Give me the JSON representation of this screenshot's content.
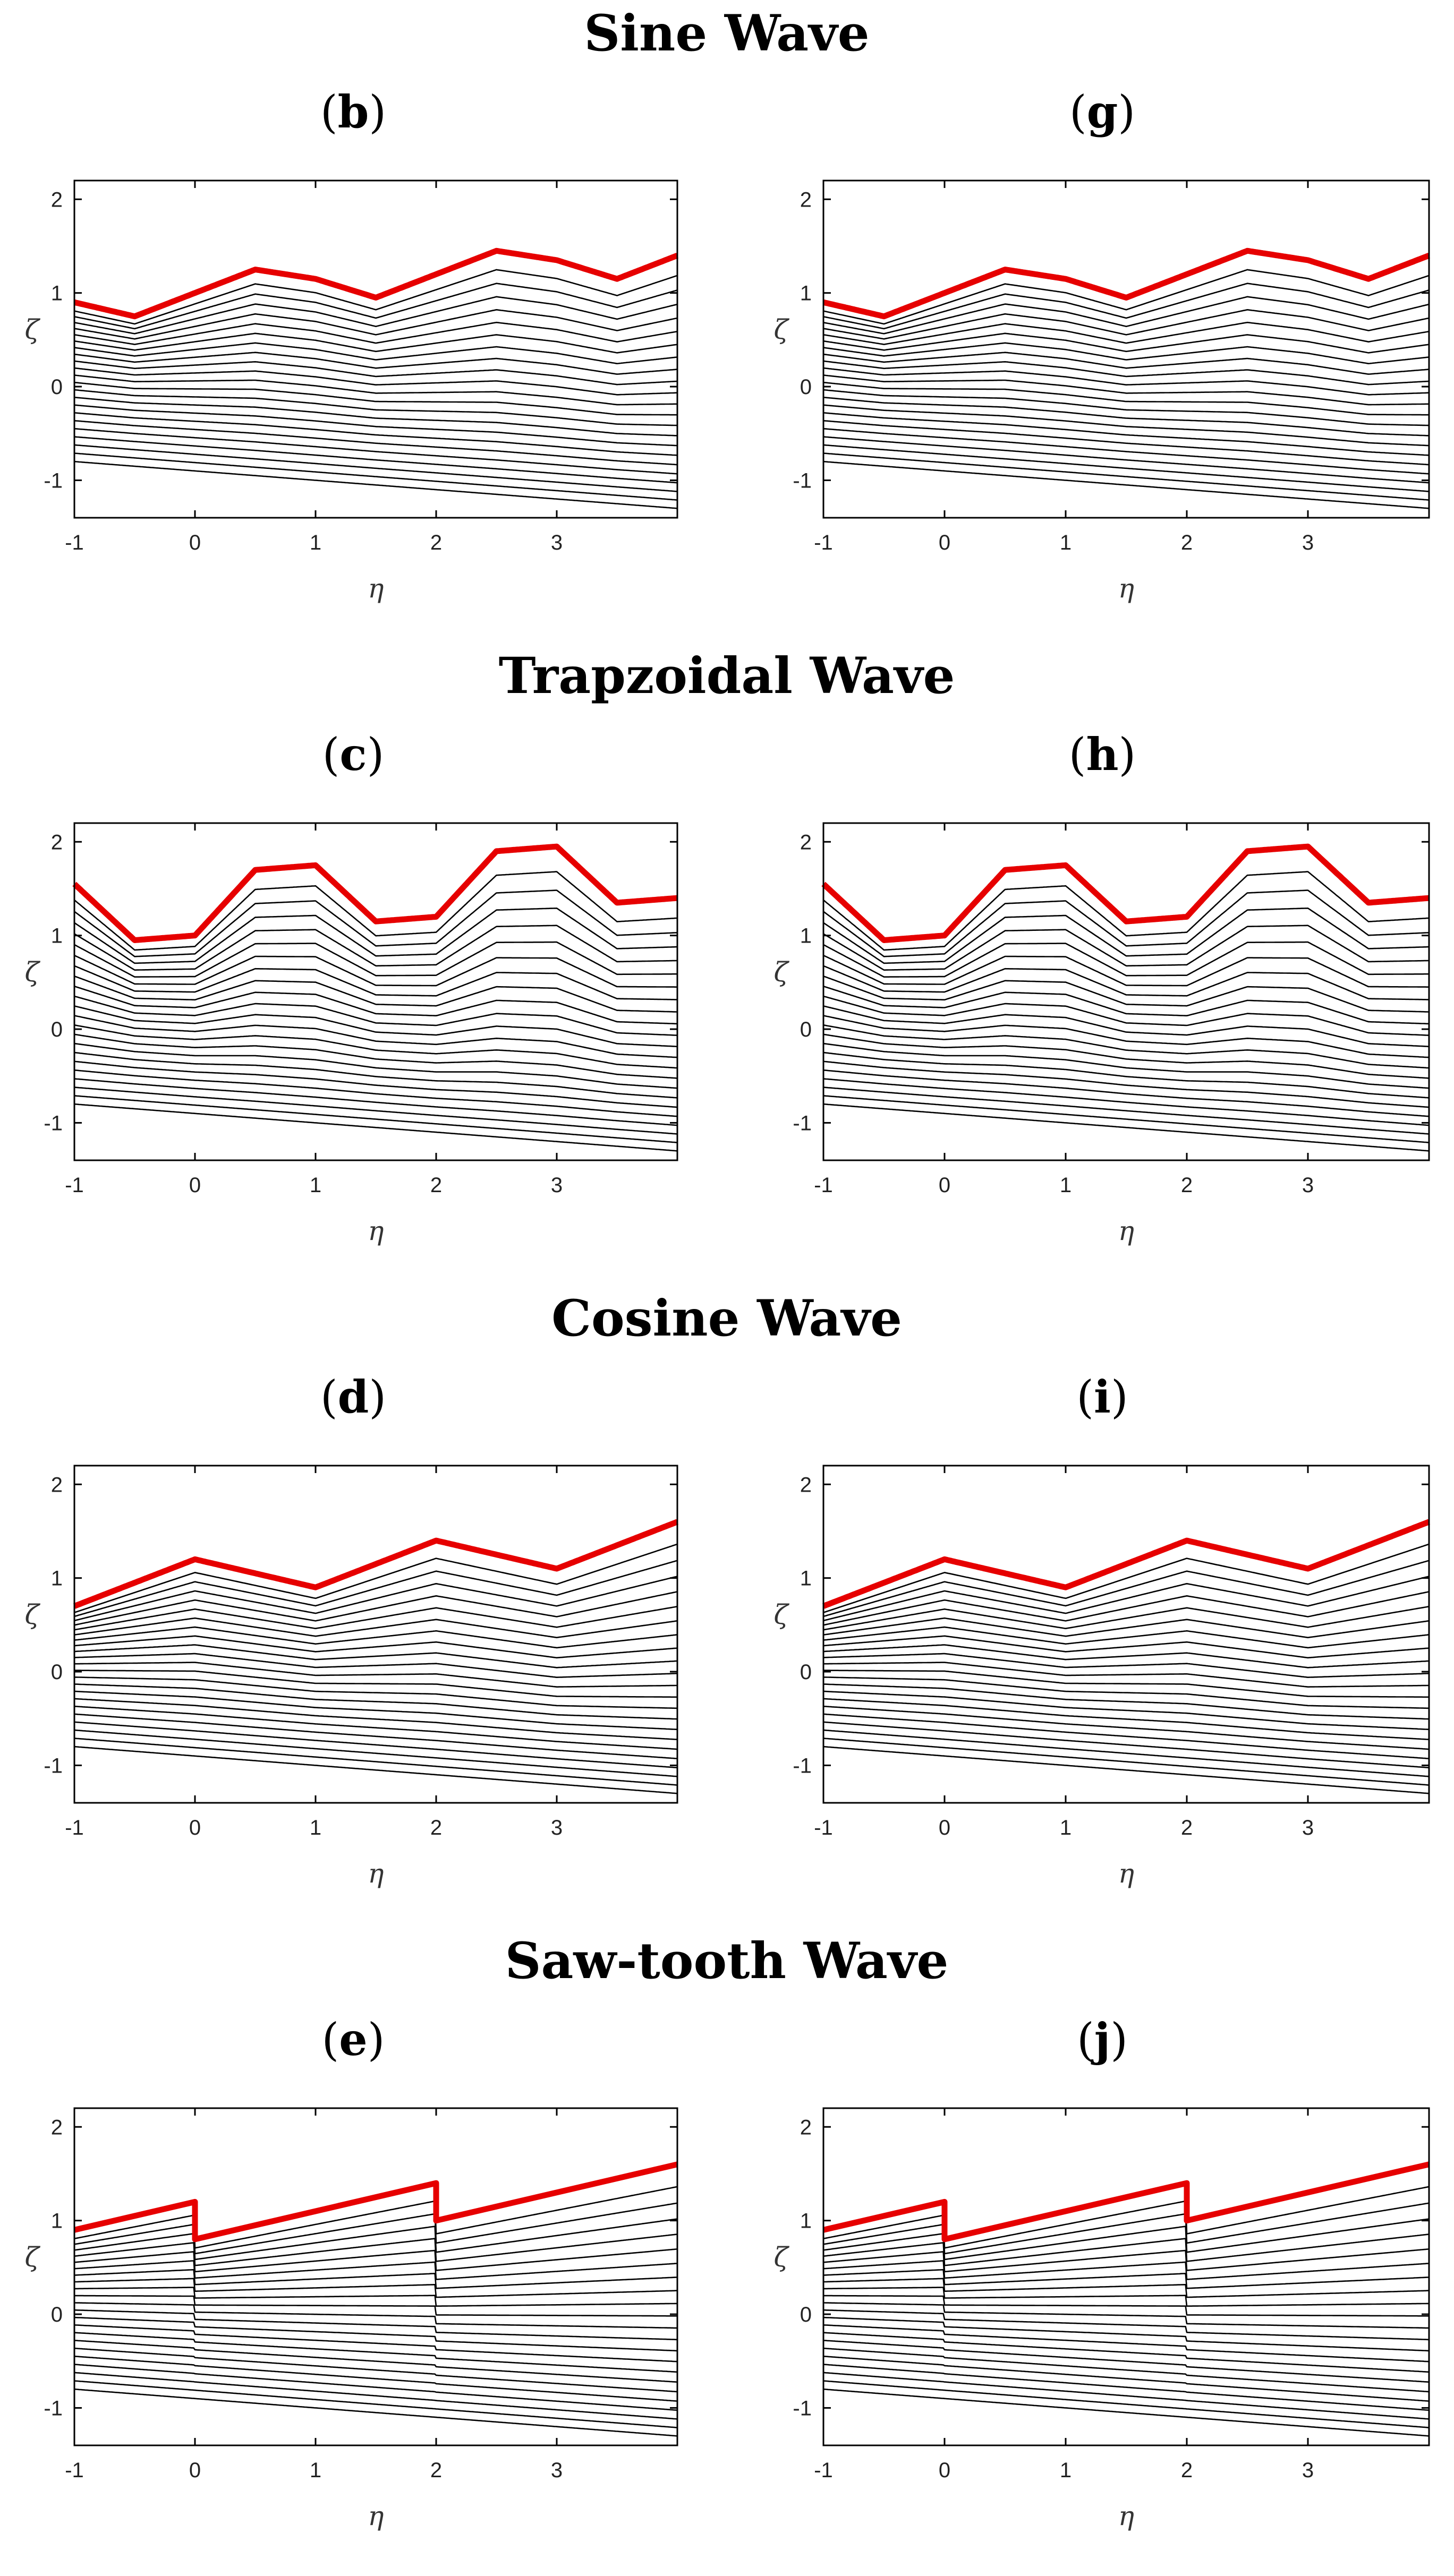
{
  "figure": {
    "rows": [
      {
        "title": "Sine Wave",
        "wave": "sine",
        "panels": [
          {
            "label": "b"
          },
          {
            "label": "g"
          }
        ]
      },
      {
        "title": "Trapzoidal Wave",
        "wave": "trapezoid",
        "panels": [
          {
            "label": "c"
          },
          {
            "label": "h"
          }
        ]
      },
      {
        "title": "Cosine Wave",
        "wave": "cosine",
        "panels": [
          {
            "label": "d"
          },
          {
            "label": "i"
          }
        ]
      },
      {
        "title": "Saw-tooth Wave",
        "wave": "sawtooth",
        "panels": [
          {
            "label": "e"
          },
          {
            "label": "j"
          }
        ]
      }
    ]
  },
  "chart_data": {
    "type": "line",
    "description_axes": {
      "xlabel": "η",
      "ylabel": "ζ",
      "xlim": [
        -1,
        4
      ],
      "ylim": [
        -1.4,
        2.2
      ],
      "xticks": [
        -1,
        0,
        1,
        2,
        3
      ],
      "yticks": [
        -1,
        0,
        1,
        2
      ]
    },
    "streamline_count": 22,
    "bottom_boundary": {
      "y_at_left": -0.8,
      "y_at_right": -1.3
    },
    "top_boundaries": {
      "sine": {
        "x": [
          -1,
          -0.5,
          0,
          0.5,
          1,
          1.5,
          2,
          2.5,
          3,
          3.5,
          4
        ],
        "y": [
          0.9,
          0.75,
          1.0,
          1.25,
          1.15,
          0.95,
          1.2,
          1.45,
          1.35,
          1.15,
          1.4
        ]
      },
      "trapezoid": {
        "x": [
          -1,
          -0.5,
          0,
          0.5,
          1,
          1.5,
          2,
          2.5,
          3,
          3.5,
          4
        ],
        "y": [
          1.55,
          0.95,
          1.0,
          1.7,
          1.75,
          1.15,
          1.2,
          1.9,
          1.95,
          1.35,
          1.4
        ]
      },
      "cosine": {
        "x": [
          -1,
          -0.5,
          0,
          0.5,
          1,
          1.5,
          2,
          2.5,
          3,
          3.5,
          4
        ],
        "y": [
          0.7,
          0.95,
          1.2,
          1.05,
          0.9,
          1.15,
          1.4,
          1.25,
          1.1,
          1.35,
          1.6
        ]
      },
      "sawtooth": {
        "x": [
          -1,
          0,
          0,
          2,
          2,
          4
        ],
        "y": [
          0.9,
          1.2,
          0.8,
          1.4,
          1.0,
          1.6
        ]
      }
    },
    "top_boundary_color": "#e60000",
    "streamline_color": "#000000"
  }
}
